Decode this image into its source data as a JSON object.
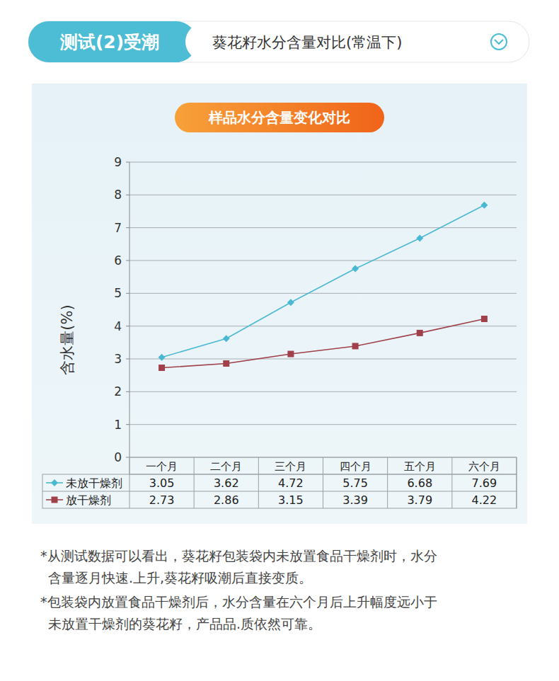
{
  "header": {
    "tag": "测试(2)受潮",
    "title": "葵花籽水分含量对比(常温下)"
  },
  "chart_data": {
    "type": "line",
    "title": "样品水分含量变化对比",
    "y_label": "含水量(%)",
    "categories": [
      "一个月",
      "二个月",
      "三个月",
      "四个月",
      "五个月",
      "六个月"
    ],
    "series": [
      {
        "name": "未放干燥剂",
        "color": "#4bb8d3",
        "marker": "diamond",
        "values": [
          3.05,
          3.62,
          4.72,
          5.75,
          6.68,
          7.69
        ]
      },
      {
        "name": "放干燥剂",
        "color": "#a0404a",
        "marker": "square",
        "values": [
          2.73,
          2.86,
          3.15,
          3.39,
          3.79,
          4.22
        ]
      }
    ],
    "ylim": [
      0,
      9
    ],
    "yticks": [
      0,
      1,
      2,
      3,
      4,
      5,
      6,
      7,
      8,
      9
    ],
    "grid": true
  },
  "notes": [
    [
      "*从测试数据可以看出，葵花籽包装袋内未放置食品干燥剂时，水分",
      "含量逐月快速.上升,葵花籽吸潮后直接变质。"
    ],
    [
      "*包装袋内放置食品干燥剂后，水分含量在六个月后上升幅度远小于",
      "未放置干燥剂的葵花籽，产品品.质依然可靠。"
    ]
  ]
}
